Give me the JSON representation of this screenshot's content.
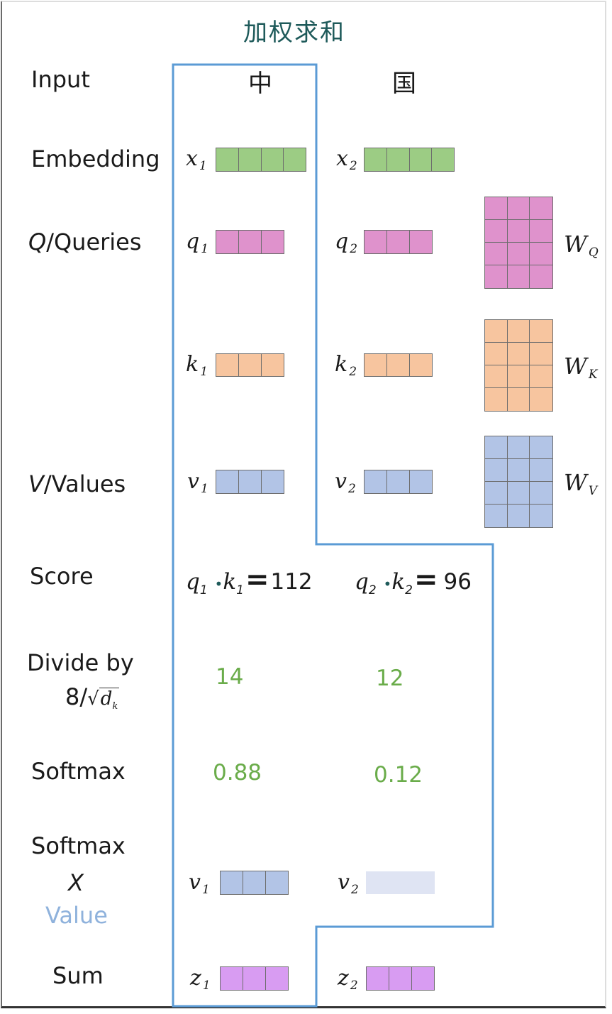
{
  "title": "加权求和",
  "row_labels": {
    "input": "Input",
    "embedding": "Embedding",
    "queries_q": "Q",
    "queries_rest": "/Queries",
    "values_v": "V",
    "values_rest": "/Values",
    "score": "Score",
    "divide_line1": "Divide by",
    "divide_line2": "8/",
    "divide_sqrt": "d",
    "divide_sqrt_sub": "k",
    "softmax": "Softmax",
    "softmax_x_value_1": "Softmax",
    "softmax_x_value_2": "X",
    "softmax_x_value_3": "Value",
    "sum": "Sum"
  },
  "tokens": [
    "中",
    "国"
  ],
  "vectors": {
    "x1": {
      "letter": "x",
      "sub": "1"
    },
    "x2": {
      "letter": "x",
      "sub": "2"
    },
    "q1": {
      "letter": "q",
      "sub": "1"
    },
    "q2": {
      "letter": "q",
      "sub": "2"
    },
    "k1": {
      "letter": "k",
      "sub": "1"
    },
    "k2": {
      "letter": "k",
      "sub": "2"
    },
    "v1": {
      "letter": "v",
      "sub": "1"
    },
    "v2": {
      "letter": "v",
      "sub": "2"
    },
    "v1b": {
      "letter": "v",
      "sub": "1"
    },
    "v2b": {
      "letter": "v",
      "sub": "2"
    },
    "z1": {
      "letter": "z",
      "sub": "1"
    },
    "z2": {
      "letter": "z",
      "sub": "2"
    }
  },
  "weights": {
    "wq": {
      "letter": "W",
      "sub": "Q"
    },
    "wk": {
      "letter": "W",
      "sub": "K"
    },
    "wv": {
      "letter": "W",
      "sub": "V"
    }
  },
  "scores": {
    "s1": {
      "q": "q",
      "qs": "1",
      "k": "k",
      "ks": "1",
      "value": "112"
    },
    "s2": {
      "q": "q",
      "qs": "2",
      "k": "k",
      "ks": "2",
      "value": "96"
    }
  },
  "divided": [
    "14",
    "12"
  ],
  "softmax_values": [
    "0.88",
    "0.12"
  ],
  "colors": {
    "embedding": "#9ccc84",
    "query": "#df92cc",
    "key": "#f7c59f",
    "value": "#b2c4e6",
    "value_faded": "#dfe4f3",
    "sum": "#d89cf2",
    "outline": "#5b9bd5",
    "title": "#1e5a5a",
    "number_green": "#6aac4a"
  }
}
